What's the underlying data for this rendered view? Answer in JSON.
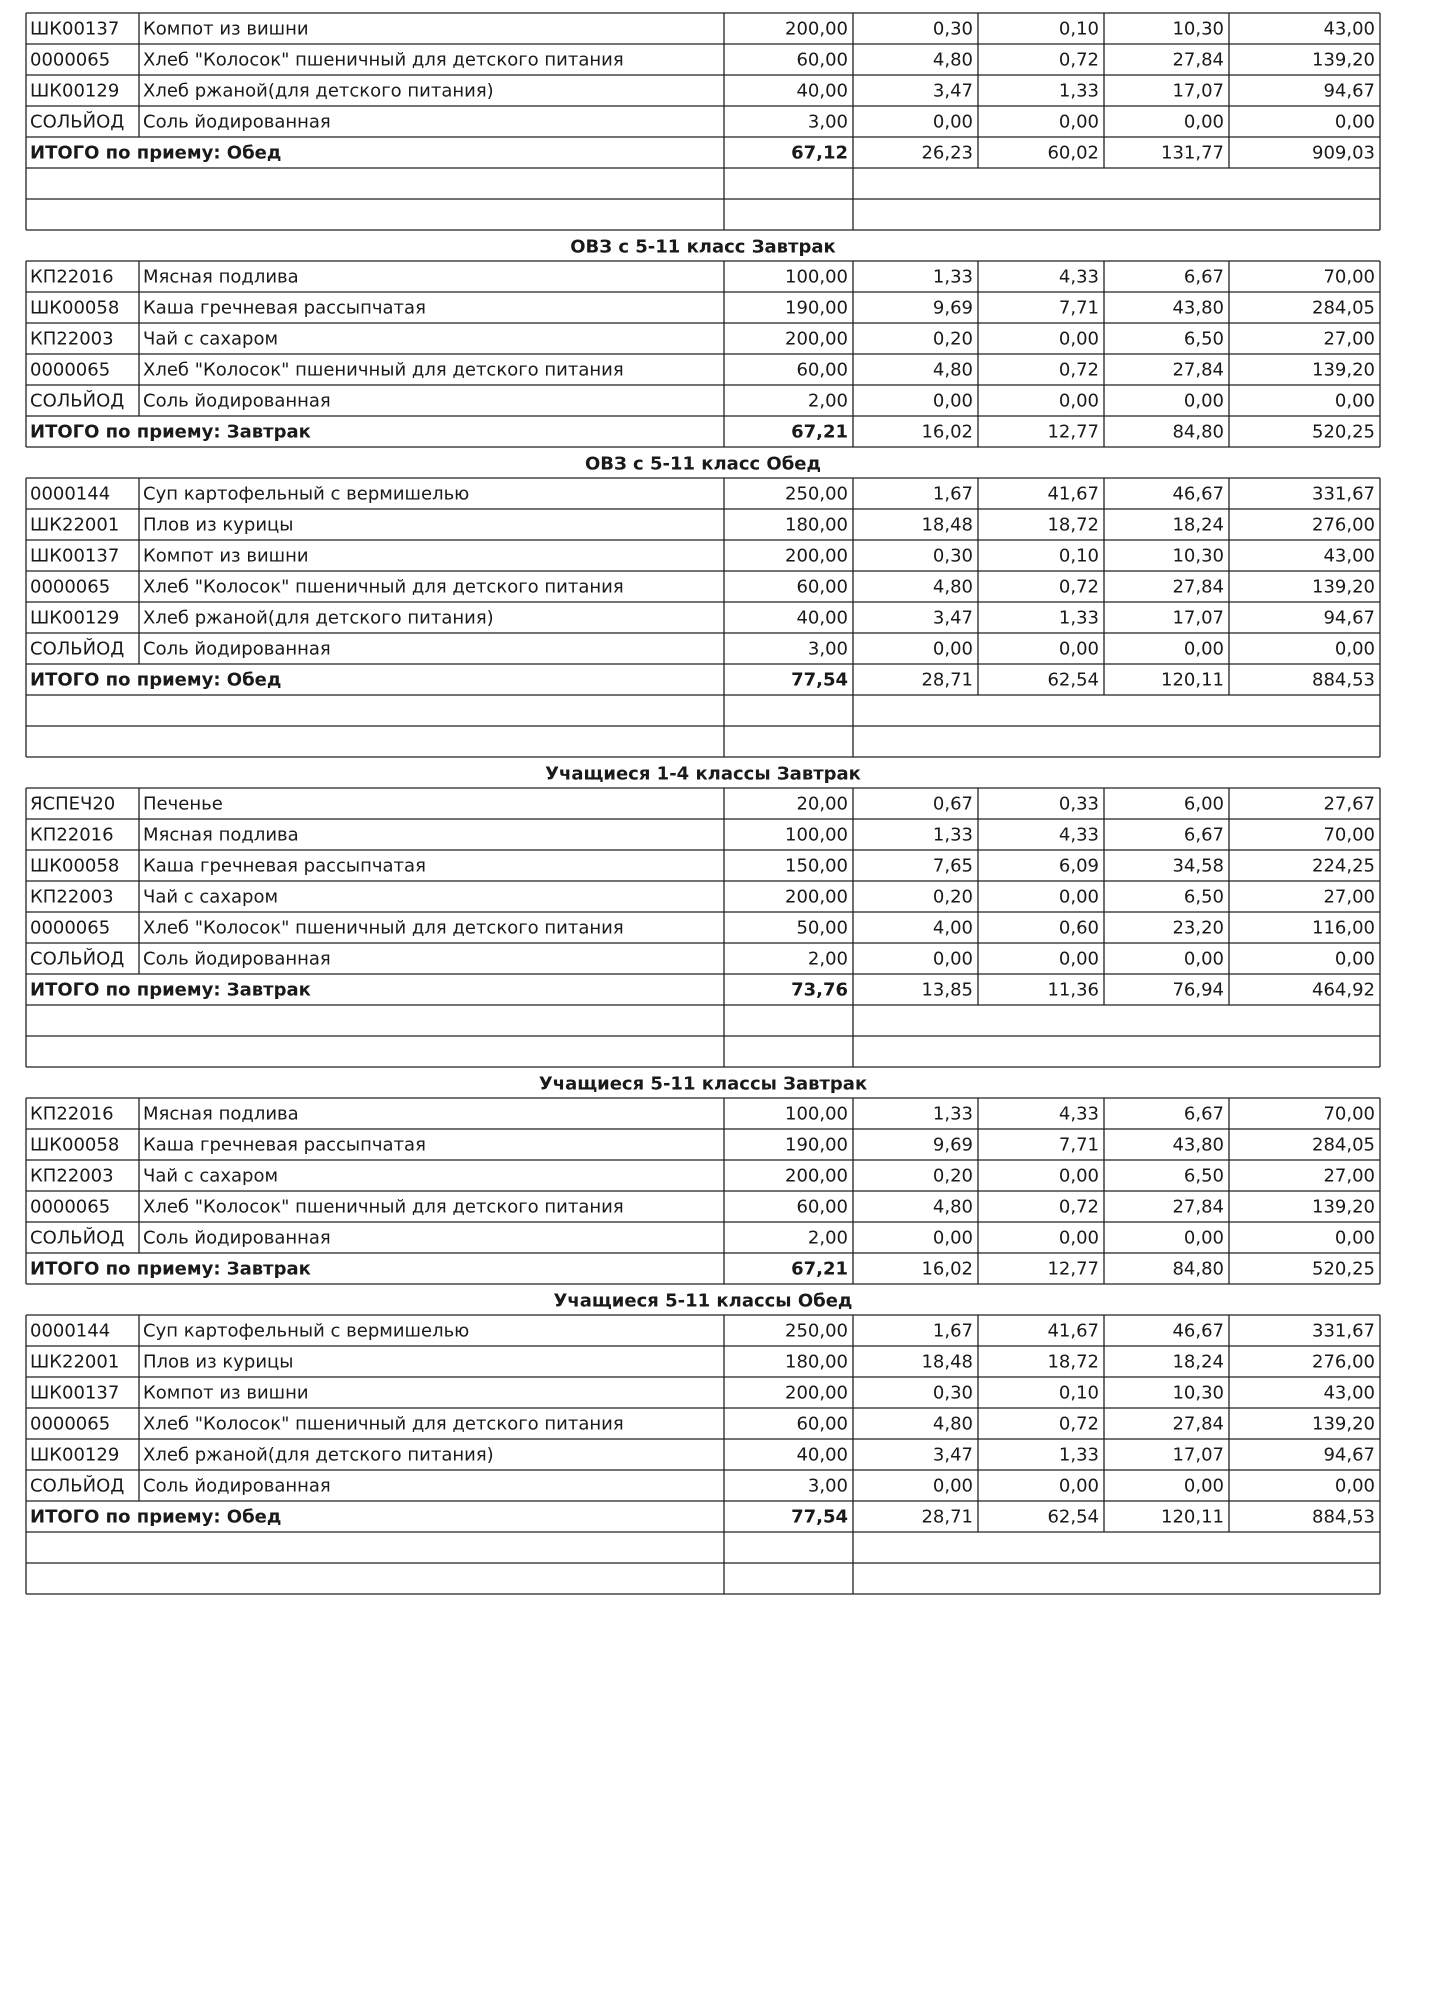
{
  "sections": [
    {
      "rows": [
        [
          "ШК00137",
          "Компот из вишни",
          "200,00",
          "0,30",
          "0,10",
          "10,30",
          "43,00"
        ],
        [
          "0000065",
          "Хлеб \"Колосок\" пшеничный для детского питания",
          "60,00",
          "4,80",
          "0,72",
          "27,84",
          "139,20"
        ],
        [
          "ШК00129",
          "Хлеб ржаной(для детского питания)",
          "40,00",
          "3,47",
          "1,33",
          "17,07",
          "94,67"
        ],
        [
          "СОЛЬЙОД",
          "Соль йодированная",
          "3,00",
          "0,00",
          "0,00",
          "0,00",
          "0,00"
        ]
      ],
      "total": [
        "ИТОГО по приему: Обед",
        "67,12",
        "26,23",
        "60,02",
        "131,77",
        "909,03"
      ]
    },
    {
      "title": "ОВЗ с 5-11 класс Завтрак",
      "rows": [
        [
          "КП22016",
          "Мясная подлива",
          "100,00",
          "1,33",
          "4,33",
          "6,67",
          "70,00"
        ],
        [
          "ШК00058",
          "Каша гречневая рассыпчатая",
          "190,00",
          "9,69",
          "7,71",
          "43,80",
          "284,05"
        ],
        [
          "КП22003",
          "Чай с сахаром",
          "200,00",
          "0,20",
          "0,00",
          "6,50",
          "27,00"
        ],
        [
          "0000065",
          "Хлеб \"Колосок\" пшеничный для детского питания",
          "60,00",
          "4,80",
          "0,72",
          "27,84",
          "139,20"
        ],
        [
          "СОЛЬЙОД",
          "Соль йодированная",
          "2,00",
          "0,00",
          "0,00",
          "0,00",
          "0,00"
        ]
      ],
      "total": [
        "ИТОГО по приему: Завтрак",
        "67,21",
        "16,02",
        "12,77",
        "84,80",
        "520,25"
      ]
    },
    {
      "title": "ОВЗ с 5-11 класс Обед",
      "rows": [
        [
          "0000144",
          "Суп картофельный с вермишелью",
          "250,00",
          "1,67",
          "41,67",
          "46,67",
          "331,67"
        ],
        [
          "ШК22001",
          "Плов из курицы",
          "180,00",
          "18,48",
          "18,72",
          "18,24",
          "276,00"
        ],
        [
          "ШК00137",
          "Компот из вишни",
          "200,00",
          "0,30",
          "0,10",
          "10,30",
          "43,00"
        ],
        [
          "0000065",
          "Хлеб \"Колосок\" пшеничный для детского питания",
          "60,00",
          "4,80",
          "0,72",
          "27,84",
          "139,20"
        ],
        [
          "ШК00129",
          "Хлеб ржаной(для детского питания)",
          "40,00",
          "3,47",
          "1,33",
          "17,07",
          "94,67"
        ],
        [
          "СОЛЬЙОД",
          "Соль йодированная",
          "3,00",
          "0,00",
          "0,00",
          "0,00",
          "0,00"
        ]
      ],
      "total": [
        "ИТОГО по приему: Обед",
        "77,54",
        "28,71",
        "62,54",
        "120,11",
        "884,53"
      ]
    },
    {
      "title": "Учащиеся 1-4 классы Завтрак",
      "rows": [
        [
          "ЯСПЕЧ20",
          "Печенье",
          "20,00",
          "0,67",
          "0,33",
          "6,00",
          "27,67"
        ],
        [
          "КП22016",
          "Мясная подлива",
          "100,00",
          "1,33",
          "4,33",
          "6,67",
          "70,00"
        ],
        [
          "ШК00058",
          "Каша гречневая рассыпчатая",
          "150,00",
          "7,65",
          "6,09",
          "34,58",
          "224,25"
        ],
        [
          "КП22003",
          "Чай с сахаром",
          "200,00",
          "0,20",
          "0,00",
          "6,50",
          "27,00"
        ],
        [
          "0000065",
          "Хлеб \"Колосок\" пшеничный для детского питания",
          "50,00",
          "4,00",
          "0,60",
          "23,20",
          "116,00"
        ],
        [
          "СОЛЬЙОД",
          "Соль йодированная",
          "2,00",
          "0,00",
          "0,00",
          "0,00",
          "0,00"
        ]
      ],
      "total": [
        "ИТОГО по приему: Завтрак",
        "73,76",
        "13,85",
        "11,36",
        "76,94",
        "464,92"
      ]
    },
    {
      "title": "Учащиеся 5-11 классы Завтрак",
      "rows": [
        [
          "КП22016",
          "Мясная подлива",
          "100,00",
          "1,33",
          "4,33",
          "6,67",
          "70,00"
        ],
        [
          "ШК00058",
          "Каша гречневая рассыпчатая",
          "190,00",
          "9,69",
          "7,71",
          "43,80",
          "284,05"
        ],
        [
          "КП22003",
          "Чай с сахаром",
          "200,00",
          "0,20",
          "0,00",
          "6,50",
          "27,00"
        ],
        [
          "0000065",
          "Хлеб \"Колосок\" пшеничный для детского питания",
          "60,00",
          "4,80",
          "0,72",
          "27,84",
          "139,20"
        ],
        [
          "СОЛЬЙОД",
          "Соль йодированная",
          "2,00",
          "0,00",
          "0,00",
          "0,00",
          "0,00"
        ]
      ],
      "total": [
        "ИТОГО по приему: Завтрак",
        "67,21",
        "16,02",
        "12,77",
        "84,80",
        "520,25"
      ]
    },
    {
      "title": "Учащиеся 5-11 классы Обед",
      "rows": [
        [
          "0000144",
          "Суп картофельный с вермишелью",
          "250,00",
          "1,67",
          "41,67",
          "46,67",
          "331,67"
        ],
        [
          "ШК22001",
          "Плов из курицы",
          "180,00",
          "18,48",
          "18,72",
          "18,24",
          "276,00"
        ],
        [
          "ШК00137",
          "Компот из вишни",
          "200,00",
          "0,30",
          "0,10",
          "10,30",
          "43,00"
        ],
        [
          "0000065",
          "Хлеб \"Колосок\" пшеничный для детского питания",
          "60,00",
          "4,80",
          "0,72",
          "27,84",
          "139,20"
        ],
        [
          "ШК00129",
          "Хлеб ржаной(для детского питания)",
          "40,00",
          "3,47",
          "1,33",
          "17,07",
          "94,67"
        ],
        [
          "СОЛЬЙОД",
          "Соль йодированная",
          "3,00",
          "0,00",
          "0,00",
          "0,00",
          "0,00"
        ]
      ],
      "total": [
        "ИТОГО по приему: Обед",
        "77,54",
        "28,71",
        "62,54",
        "120,11",
        "884,53"
      ]
    }
  ]
}
